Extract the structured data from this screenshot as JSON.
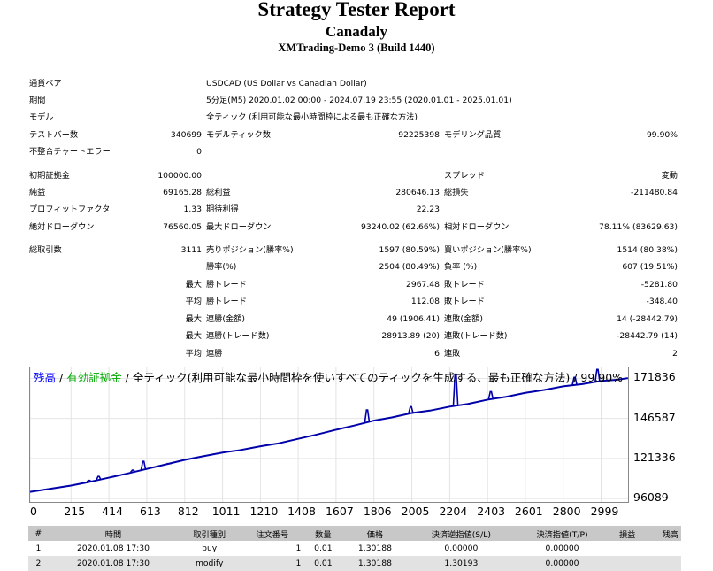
{
  "header": {
    "title": "Strategy Tester Report",
    "expert": "Canadaly",
    "server": "XMTrading-Demo 3 (Build 1440)"
  },
  "settings": {
    "symbol_label": "通貨ペア",
    "symbol_value": "USDCAD (US Dollar vs Canadian Dollar)",
    "period_label": "期間",
    "period_value": "5分足(M5) 2020.01.02 00:00 - 2024.07.19 23:55 (2020.01.01 - 2025.01.01)",
    "model_label": "モデル",
    "model_value": "全ティック (利用可能な最小時間枠による最も正確な方法)",
    "bars_label": "テストバー数",
    "bars_value": "340699",
    "ticks_label": "モデルティック数",
    "ticks_value": "92225398",
    "quality_label": "モデリング品質",
    "quality_value": "99.90%",
    "mismatch_label": "不整合チャートエラー",
    "mismatch_value": "0"
  },
  "results": {
    "deposit_label": "初期証拠金",
    "deposit_value": "100000.00",
    "spread_label": "スプレッド",
    "spread_value": "変動",
    "net_label": "純益",
    "net_value": "69165.28",
    "gross_profit_label": "総利益",
    "gross_profit_value": "280646.13",
    "gross_loss_label": "総損失",
    "gross_loss_value": "-211480.84",
    "pf_label": "プロフィットファクタ",
    "pf_value": "1.33",
    "payoff_label": "期待利得",
    "payoff_value": "22.23",
    "abs_dd_label": "絶対ドローダウン",
    "abs_dd_value": "76560.05",
    "max_dd_label": "最大ドローダウン",
    "max_dd_value": "93240.02 (62.66%)",
    "rel_dd_label": "相対ドローダウン",
    "rel_dd_value": "78.11% (83629.63)",
    "total_trades_label": "総取引数",
    "total_trades_value": "3111",
    "short_label": "売りポジション(勝率%)",
    "short_value": "1597 (80.59%)",
    "long_label": "買いポジション(勝率%)",
    "long_value": "1514 (80.38%)",
    "win_label": "勝率(%)",
    "win_value": "2504 (80.49%)",
    "loss_label": "負率 (%)",
    "loss_value": "607 (19.51%)",
    "max_word": "最大",
    "avg_word": "平均",
    "largest_win_label": "勝トレード",
    "largest_win_value": "2967.48",
    "largest_loss_label": "敗トレード",
    "largest_loss_value": "-5281.80",
    "avg_win_label": "勝トレード",
    "avg_win_value": "112.08",
    "avg_loss_label": "敗トレード",
    "avg_loss_value": "-348.40",
    "max_consec_wins_label": "連勝(金額)",
    "max_consec_wins_value": "49 (1906.41)",
    "max_consec_losses_label": "連敗(金額)",
    "max_consec_losses_value": "14 (-28442.79)",
    "max_consec_profit_label": "連勝(トレード数)",
    "max_consec_profit_value": "28913.89 (20)",
    "max_consec_loss_label": "連敗(トレード数)",
    "max_consec_loss_value": "-28442.79 (14)",
    "avg_consec_wins_label": "連勝",
    "avg_consec_wins_value": "6",
    "avg_consec_losses_label": "連敗",
    "avg_consec_losses_value": "2"
  },
  "chart_data": {
    "type": "line",
    "legend_balance": "残高",
    "legend_sep": " / ",
    "legend_equity": "有効証拠金",
    "legend_rest": " / 全ティック(利用可能な最小時間枠を使いすべてのティックを生成する、最も正確な方法) / 99.90%",
    "colors": {
      "balance": "#0000aa",
      "legend_balance": "#0000ff",
      "legend_equity": "#00aa00"
    },
    "y_ticks": [
      "171836",
      "146587",
      "121336",
      "96089"
    ],
    "y_tick_values": [
      171836,
      146587,
      121336,
      96089
    ],
    "x_ticks": [
      "0",
      "215",
      "414",
      "613",
      "812",
      "1011",
      "1210",
      "1408",
      "1607",
      "1806",
      "2005",
      "2204",
      "2403",
      "2601",
      "2800",
      "2999"
    ],
    "xlim": [
      0,
      3150
    ],
    "ylim": [
      92800,
      178800
    ],
    "balance": {
      "x": [
        0,
        80,
        215,
        300,
        414,
        500,
        613,
        700,
        812,
        900,
        1011,
        1100,
        1210,
        1300,
        1408,
        1500,
        1607,
        1700,
        1806,
        1900,
        2005,
        2100,
        2204,
        2300,
        2403,
        2500,
        2601,
        2700,
        2800,
        2900,
        2999,
        3080,
        3140
      ],
      "y": [
        100000,
        102000,
        104000,
        106500,
        109000,
        111800,
        114500,
        117500,
        120200,
        122800,
        124800,
        126800,
        128800,
        131000,
        133500,
        136500,
        139200,
        142300,
        145000,
        147500,
        149800,
        151800,
        153800,
        156000,
        158200,
        160500,
        162500,
        164800,
        166600,
        168500,
        170000,
        171200,
        171800
      ]
    },
    "equity_spikes": [
      {
        "x": 310,
        "y": 107500
      },
      {
        "x": 360,
        "y": 110000
      },
      {
        "x": 540,
        "y": 114000
      },
      {
        "x": 595,
        "y": 119500
      },
      {
        "x": 730,
        "y": 118000
      },
      {
        "x": 1770,
        "y": 152000
      },
      {
        "x": 2000,
        "y": 154000
      },
      {
        "x": 2235,
        "y": 174500
      },
      {
        "x": 2420,
        "y": 163500
      },
      {
        "x": 2860,
        "y": 172500
      },
      {
        "x": 2980,
        "y": 177500
      }
    ]
  },
  "deals_table": {
    "columns": [
      "#",
      "時間",
      "取引種別",
      "注文番号",
      "数量",
      "価格",
      "決済逆指値(S/L)",
      "決済指値(T/P)",
      "損益",
      "残高"
    ],
    "rows": [
      [
        "1",
        "2020.01.08 17:30",
        "buy",
        "1",
        "0.01",
        "1.30188",
        "0.00000",
        "0.00000",
        "",
        ""
      ],
      [
        "2",
        "2020.01.08 17:30",
        "modify",
        "1",
        "0.01",
        "1.30188",
        "1.30193",
        "0.00000",
        "",
        ""
      ]
    ]
  }
}
